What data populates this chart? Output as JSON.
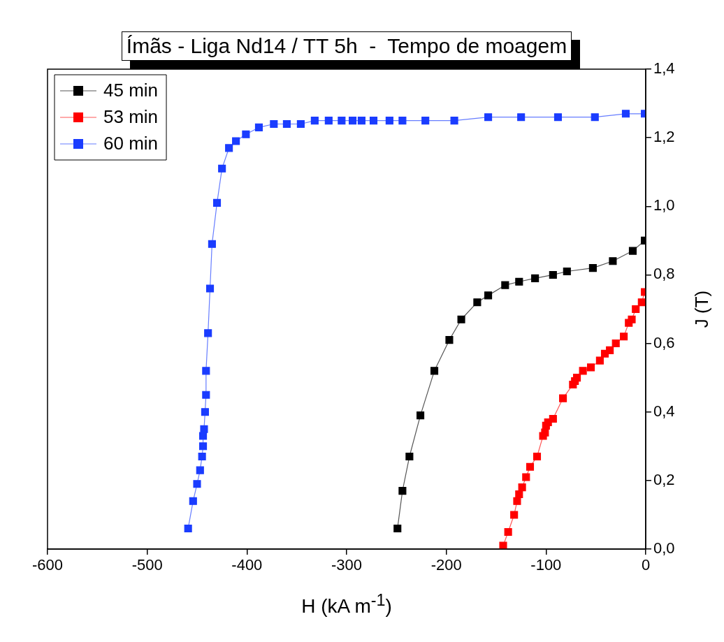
{
  "chart_data": {
    "type": "line",
    "title": "Ímãs - Liga Nd14 / TT 5h  -  Tempo de moagem",
    "xlabel": "H (kA m$^{-1}$)",
    "ylabel": "J (T)",
    "xlim": [
      -600,
      0
    ],
    "xticks": [
      -600,
      -500,
      -400,
      -300,
      -200,
      -100,
      0
    ],
    "ylim": [
      0,
      1.4
    ],
    "yticks": [
      {
        "value": 0,
        "label": "0,0"
      },
      {
        "value": 0.2,
        "label": "0,2"
      },
      {
        "value": 0.4,
        "label": "0,4"
      },
      {
        "value": 0.6,
        "label": "0,6"
      },
      {
        "value": 0.8,
        "label": "0,8"
      },
      {
        "value": 1.0,
        "label": "1,0"
      },
      {
        "value": 1.2,
        "label": "1,2"
      },
      {
        "value": 1.4,
        "label": "1,4"
      }
    ],
    "legend": "top left",
    "marker": "square",
    "line_style": "solid",
    "series": [
      {
        "name": "45 min",
        "color": "#000000",
        "x": [
          -249,
          -244,
          -237,
          -226,
          -212,
          -197,
          -185,
          -169,
          -158,
          -141,
          -127,
          -111,
          -93,
          -79,
          -53,
          -33,
          -13,
          -1
        ],
        "values": [
          0.06,
          0.17,
          0.27,
          0.39,
          0.52,
          0.61,
          0.67,
          0.72,
          0.74,
          0.77,
          0.78,
          0.79,
          0.8,
          0.81,
          0.82,
          0.84,
          0.87,
          0.9
        ]
      },
      {
        "name": "53 min",
        "color": "#ff0000",
        "x": [
          -143,
          -138,
          -132,
          -129,
          -127,
          -124,
          -120,
          -116,
          -109,
          -103,
          -101,
          -100,
          -98,
          -93,
          -83,
          -73,
          -71,
          -69,
          -63,
          -55,
          -46,
          -41,
          -36,
          -30,
          -22,
          -17,
          -14,
          -10,
          -4,
          -1
        ],
        "values": [
          0.01,
          0.05,
          0.1,
          0.14,
          0.16,
          0.18,
          0.21,
          0.24,
          0.27,
          0.33,
          0.34,
          0.36,
          0.37,
          0.38,
          0.44,
          0.48,
          0.49,
          0.5,
          0.52,
          0.53,
          0.55,
          0.57,
          0.58,
          0.6,
          0.62,
          0.66,
          0.67,
          0.7,
          0.72,
          0.75
        ]
      },
      {
        "name": "60 min",
        "color": "#1a3cff",
        "x": [
          -459,
          -454,
          -450,
          -447,
          -445,
          -444,
          -444,
          -443,
          -442,
          -441,
          -441,
          -439,
          -437,
          -435,
          -430,
          -425,
          -418,
          -411,
          -401,
          -388,
          -373,
          -360,
          -346,
          -332,
          -318,
          -305,
          -294,
          -285,
          -273,
          -257,
          -244,
          -221,
          -192,
          -158,
          -125,
          -88,
          -51,
          -20,
          -1
        ],
        "values": [
          0.06,
          0.14,
          0.19,
          0.23,
          0.27,
          0.3,
          0.33,
          0.35,
          0.4,
          0.45,
          0.52,
          0.63,
          0.76,
          0.89,
          1.01,
          1.11,
          1.17,
          1.19,
          1.21,
          1.23,
          1.24,
          1.24,
          1.24,
          1.25,
          1.25,
          1.25,
          1.25,
          1.25,
          1.25,
          1.25,
          1.25,
          1.25,
          1.25,
          1.26,
          1.26,
          1.26,
          1.26,
          1.27,
          1.27
        ]
      }
    ]
  }
}
